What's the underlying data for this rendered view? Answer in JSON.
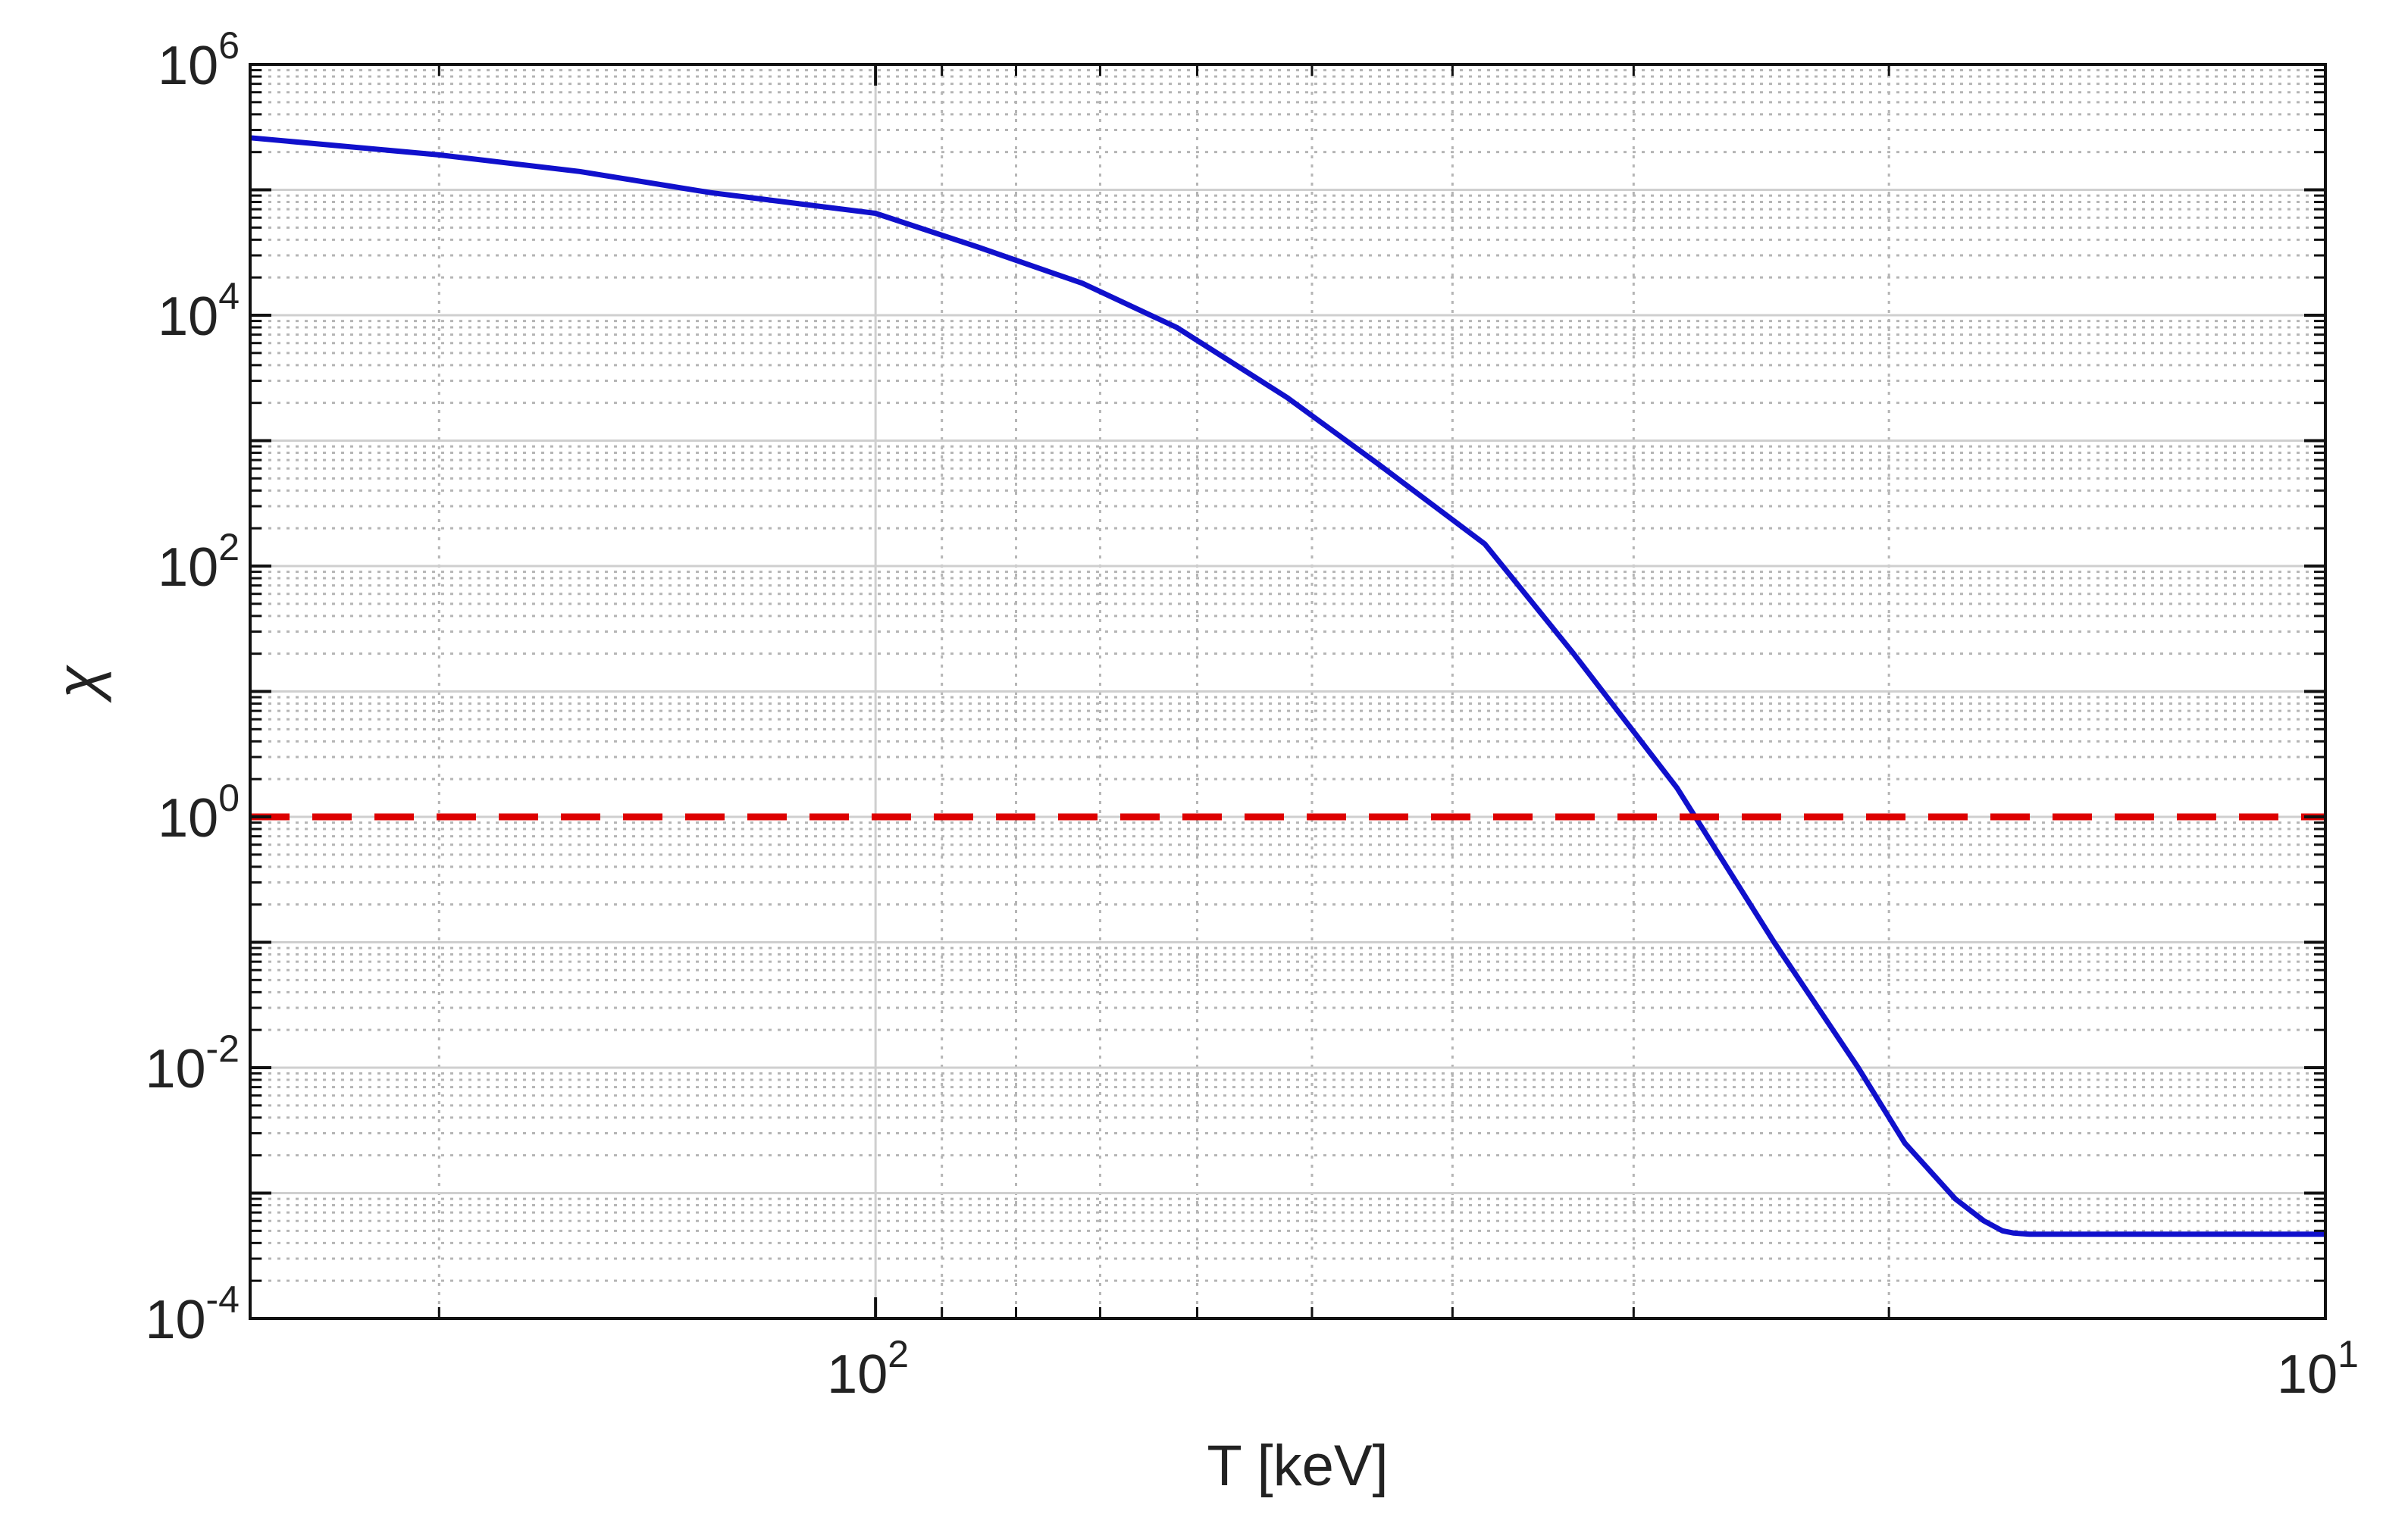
{
  "chart_data": {
    "type": "line",
    "title": "",
    "xlabel": "T [keV]",
    "ylabel": "χ",
    "x_scale": "log",
    "y_scale": "log",
    "x_reversed": true,
    "xlim": [
      270,
      10
    ],
    "ylim": [
      0.0001,
      1000000
    ],
    "grid": true,
    "minor_grid": true,
    "legend": "none",
    "x_ticks": [
      {
        "value": 100,
        "base": "10",
        "exp": "2"
      },
      {
        "value": 10,
        "base": "10",
        "exp": "1"
      }
    ],
    "y_ticks": [
      {
        "value": 1000000,
        "base": "10",
        "exp": "6"
      },
      {
        "value": 10000,
        "base": "10",
        "exp": "4"
      },
      {
        "value": 100,
        "base": "10",
        "exp": "2"
      },
      {
        "value": 1,
        "base": "10",
        "exp": "0"
      },
      {
        "value": 0.01,
        "base": "10",
        "exp": "-2"
      },
      {
        "value": 0.0001,
        "base": "10",
        "exp": "-4"
      }
    ],
    "series": [
      {
        "color": "#1010cc",
        "style": "solid",
        "x": [
          270,
          200,
          160,
          130,
          100,
          85,
          72,
          62,
          52,
          45,
          38,
          33,
          28,
          24,
          21,
          19.5,
          18,
          17.2,
          16.7,
          16.4,
          16,
          14,
          12,
          10
        ],
        "y": [
          260000,
          190000,
          140000,
          95000,
          65000,
          35000,
          18000,
          8000,
          2200,
          650,
          150,
          20,
          1.7,
          0.1,
          0.01,
          0.0025,
          0.0009,
          0.0006,
          0.0005,
          0.00048,
          0.00047,
          0.00047,
          0.00047,
          0.00047
        ]
      },
      {
        "color": "#dd0000",
        "style": "dashed",
        "x": [
          270,
          10
        ],
        "y": [
          1,
          1
        ]
      }
    ]
  }
}
